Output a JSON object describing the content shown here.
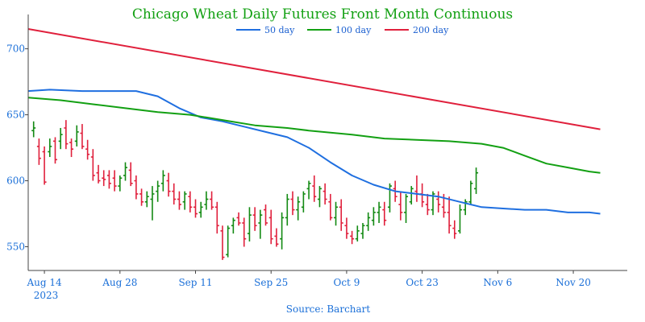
{
  "chart_data": {
    "type": "line",
    "title": "Chicago Wheat Daily Futures Front Month Continuous",
    "source": "Source: Barchart",
    "x_ticks": [
      "Aug 14",
      "Aug 28",
      "Sep 11",
      "Sep 25",
      "Oct 9",
      "Oct 23",
      "Nov 6",
      "Nov 20"
    ],
    "x_year_label": "2023",
    "y_ticks": [
      550,
      600,
      650,
      700
    ],
    "ylim": [
      532,
      726
    ],
    "grid": false,
    "legend_position": "top-center",
    "colors": {
      "ma50": "#1f6fe0",
      "ma100": "#13a013",
      "ma200": "#e0203c",
      "up": "#138a13",
      "down": "#e0203c",
      "axis": "#444444"
    },
    "series": [
      {
        "name": "50 day",
        "color": "#1f6fe0",
        "values": [
          [
            0,
            668
          ],
          [
            4,
            669
          ],
          [
            10,
            668
          ],
          [
            14,
            668
          ],
          [
            20,
            668
          ],
          [
            24,
            664
          ],
          [
            28,
            655
          ],
          [
            32,
            648
          ],
          [
            36,
            645
          ],
          [
            40,
            641
          ],
          [
            44,
            637
          ],
          [
            48,
            633
          ],
          [
            52,
            625
          ],
          [
            56,
            614
          ],
          [
            60,
            604
          ],
          [
            64,
            597
          ],
          [
            68,
            592
          ],
          [
            72,
            590
          ],
          [
            76,
            588
          ],
          [
            80,
            584
          ],
          [
            84,
            580
          ],
          [
            88,
            579
          ],
          [
            92,
            578
          ],
          [
            96,
            578
          ],
          [
            100,
            576
          ],
          [
            104,
            576
          ],
          [
            106,
            575
          ]
        ]
      },
      {
        "name": "100 day",
        "color": "#13a013",
        "values": [
          [
            0,
            663
          ],
          [
            6,
            661
          ],
          [
            12,
            658
          ],
          [
            18,
            655
          ],
          [
            24,
            652
          ],
          [
            30,
            650
          ],
          [
            36,
            646
          ],
          [
            42,
            642
          ],
          [
            48,
            640
          ],
          [
            52,
            638
          ],
          [
            60,
            635
          ],
          [
            66,
            632
          ],
          [
            72,
            631
          ],
          [
            78,
            630
          ],
          [
            84,
            628
          ],
          [
            88,
            625
          ],
          [
            92,
            619
          ],
          [
            96,
            613
          ],
          [
            100,
            610
          ],
          [
            104,
            607
          ],
          [
            106,
            606
          ]
        ]
      },
      {
        "name": "200 day",
        "color": "#e0203c",
        "values": [
          [
            0,
            715
          ],
          [
            106,
            639
          ]
        ]
      }
    ],
    "bars": [
      [
        1,
        638,
        645,
        633,
        640
      ],
      [
        2,
        626,
        632,
        612,
        617
      ],
      [
        3,
        622,
        626,
        597,
        599
      ],
      [
        4,
        622,
        632,
        618,
        626
      ],
      [
        5,
        630,
        633,
        613,
        616
      ],
      [
        6,
        630,
        640,
        624,
        635
      ],
      [
        7,
        640,
        646,
        624,
        628
      ],
      [
        8,
        629,
        632,
        618,
        624
      ],
      [
        9,
        630,
        642,
        626,
        637
      ],
      [
        10,
        636,
        643,
        624,
        626
      ],
      [
        11,
        624,
        631,
        616,
        620
      ],
      [
        12,
        618,
        624,
        600,
        604
      ],
      [
        13,
        606,
        612,
        598,
        600
      ],
      [
        14,
        602,
        608,
        596,
        601
      ],
      [
        15,
        604,
        608,
        594,
        598
      ],
      [
        16,
        602,
        608,
        592,
        596
      ],
      [
        17,
        596,
        604,
        592,
        602
      ],
      [
        18,
        604,
        614,
        600,
        610
      ],
      [
        19,
        608,
        614,
        596,
        598
      ],
      [
        20,
        600,
        604,
        586,
        590
      ],
      [
        21,
        590,
        594,
        581,
        584
      ],
      [
        22,
        584,
        592,
        580,
        588
      ],
      [
        23,
        586,
        596,
        570,
        590
      ],
      [
        24,
        592,
        600,
        584,
        596
      ],
      [
        25,
        598,
        608,
        592,
        604
      ],
      [
        26,
        600,
        606,
        588,
        592
      ],
      [
        27,
        592,
        598,
        582,
        586
      ],
      [
        28,
        586,
        592,
        578,
        582
      ],
      [
        29,
        584,
        592,
        578,
        590
      ],
      [
        30,
        588,
        592,
        576,
        580
      ],
      [
        31,
        580,
        586,
        572,
        575
      ],
      [
        32,
        576,
        584,
        572,
        580
      ],
      [
        33,
        582,
        592,
        578,
        586
      ],
      [
        34,
        586,
        592,
        578,
        580
      ],
      [
        35,
        580,
        584,
        560,
        566
      ],
      [
        36,
        562,
        566,
        540,
        542
      ],
      [
        37,
        544,
        566,
        542,
        564
      ],
      [
        38,
        566,
        572,
        560,
        570
      ],
      [
        39,
        572,
        576,
        566,
        568
      ],
      [
        40,
        568,
        572,
        550,
        556
      ],
      [
        41,
        560,
        580,
        554,
        574
      ],
      [
        42,
        574,
        580,
        562,
        566
      ],
      [
        43,
        568,
        578,
        556,
        574
      ],
      [
        44,
        578,
        582,
        566,
        568
      ],
      [
        45,
        572,
        578,
        552,
        556
      ],
      [
        46,
        558,
        564,
        550,
        552
      ],
      [
        47,
        556,
        576,
        548,
        572
      ],
      [
        48,
        572,
        590,
        566,
        586
      ],
      [
        49,
        586,
        592,
        574,
        578
      ],
      [
        50,
        578,
        588,
        570,
        584
      ],
      [
        51,
        580,
        592,
        576,
        590
      ],
      [
        52,
        594,
        600,
        586,
        598
      ],
      [
        53,
        596,
        604,
        584,
        588
      ],
      [
        54,
        586,
        596,
        580,
        594
      ],
      [
        55,
        592,
        598,
        582,
        586
      ],
      [
        56,
        584,
        590,
        570,
        572
      ],
      [
        57,
        572,
        584,
        566,
        580
      ],
      [
        58,
        580,
        586,
        562,
        568
      ],
      [
        59,
        566,
        572,
        556,
        560
      ],
      [
        60,
        558,
        562,
        552,
        556
      ],
      [
        61,
        556,
        566,
        554,
        562
      ],
      [
        62,
        560,
        568,
        556,
        566
      ],
      [
        63,
        566,
        576,
        562,
        572
      ],
      [
        64,
        570,
        580,
        566,
        576
      ],
      [
        65,
        576,
        584,
        568,
        580
      ],
      [
        66,
        578,
        584,
        566,
        570
      ],
      [
        67,
        580,
        598,
        576,
        596
      ],
      [
        68,
        594,
        600,
        584,
        588
      ],
      [
        69,
        582,
        592,
        570,
        576
      ],
      [
        70,
        576,
        590,
        568,
        588
      ],
      [
        71,
        584,
        596,
        582,
        594
      ],
      [
        72,
        592,
        604,
        584,
        590
      ],
      [
        73,
        590,
        598,
        580,
        584
      ],
      [
        74,
        582,
        590,
        574,
        578
      ],
      [
        75,
        578,
        592,
        574,
        590
      ],
      [
        76,
        586,
        592,
        576,
        582
      ],
      [
        77,
        580,
        590,
        572,
        576
      ],
      [
        78,
        576,
        588,
        560,
        566
      ],
      [
        79,
        564,
        570,
        556,
        560
      ],
      [
        80,
        562,
        582,
        560,
        578
      ],
      [
        81,
        578,
        586,
        574,
        584
      ],
      [
        82,
        584,
        600,
        582,
        598
      ],
      [
        83,
        594,
        610,
        590,
        606
      ]
    ]
  }
}
